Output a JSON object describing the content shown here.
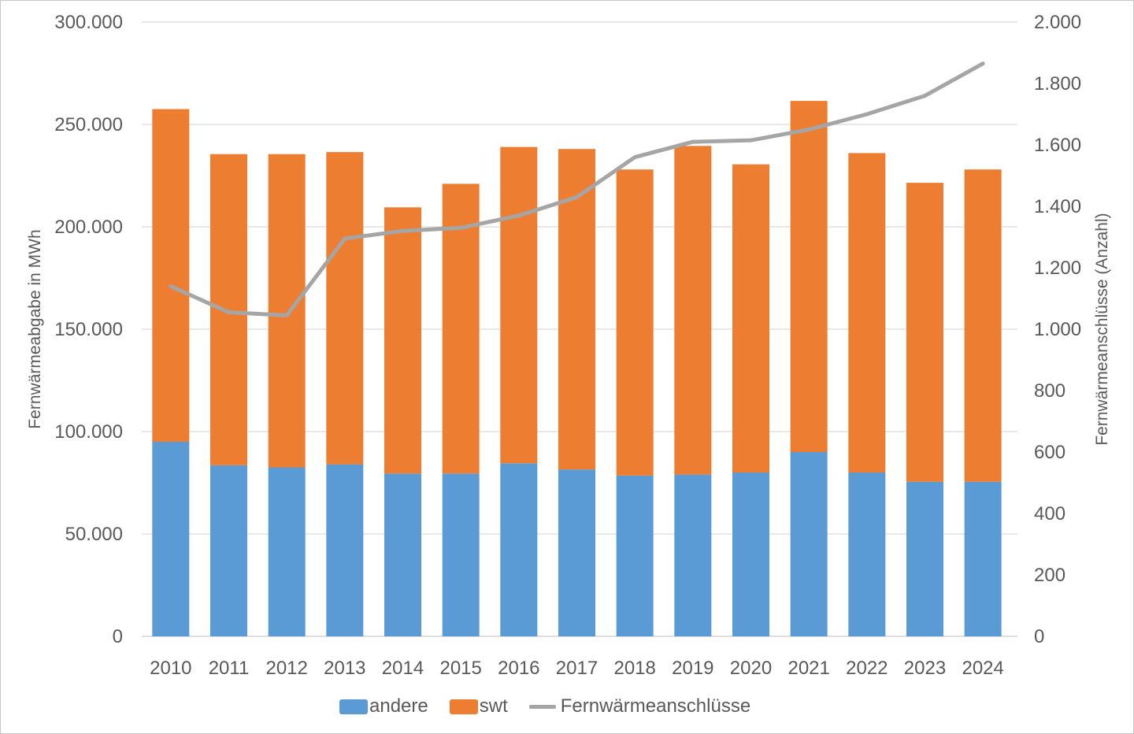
{
  "chart_data": {
    "type": "bar",
    "subtype": "stacked-column-with-secondary-line",
    "title": "",
    "categories": [
      "2010",
      "2011",
      "2012",
      "2013",
      "2014",
      "2015",
      "2016",
      "2017",
      "2018",
      "2019",
      "2020",
      "2021",
      "2022",
      "2023",
      "2024"
    ],
    "series": [
      {
        "name": "andere",
        "type": "bar",
        "stack": "total",
        "axis": "left",
        "color": "#5b9bd5",
        "values": [
          95000,
          83500,
          82500,
          84000,
          79500,
          79500,
          84500,
          81500,
          78500,
          79000,
          80000,
          90000,
          80000,
          75500,
          75500
        ]
      },
      {
        "name": "swt",
        "type": "bar",
        "stack": "total",
        "axis": "left",
        "color": "#ed7d31",
        "values": [
          162500,
          152000,
          153000,
          152500,
          130000,
          141500,
          154500,
          156500,
          149500,
          160500,
          150500,
          171500,
          156000,
          146000,
          152500
        ]
      },
      {
        "name": "Fernwärmeanschlüsse",
        "type": "line",
        "axis": "right",
        "color": "#a5a5a5",
        "values": [
          1140,
          1055,
          1045,
          1295,
          1320,
          1330,
          1370,
          1430,
          1560,
          1610,
          1615,
          1650,
          1700,
          1760,
          1865
        ]
      }
    ],
    "left_axis": {
      "title": "Fernwärmeabgabe in MWh",
      "range": [
        0,
        300000
      ],
      "step": 50000,
      "tick_labels": [
        "0",
        "50.000",
        "100.000",
        "150.000",
        "200.000",
        "250.000",
        "300.000"
      ]
    },
    "right_axis": {
      "title": "Fernwärmeanschlüsse (Anzahl)",
      "range": [
        0,
        2000
      ],
      "step": 200,
      "tick_labels": [
        "0",
        "200",
        "400",
        "600",
        "800",
        "1.000",
        "1.200",
        "1.400",
        "1.600",
        "1.800",
        "2.000"
      ]
    },
    "legend": {
      "position": "bottom",
      "entries": [
        "andere",
        "swt",
        "Fernwärmeanschlüsse"
      ]
    },
    "grid": true,
    "colors": {
      "grid": "#d9d9d9",
      "baseline": "#c9c9c9",
      "text": "#595959"
    }
  }
}
